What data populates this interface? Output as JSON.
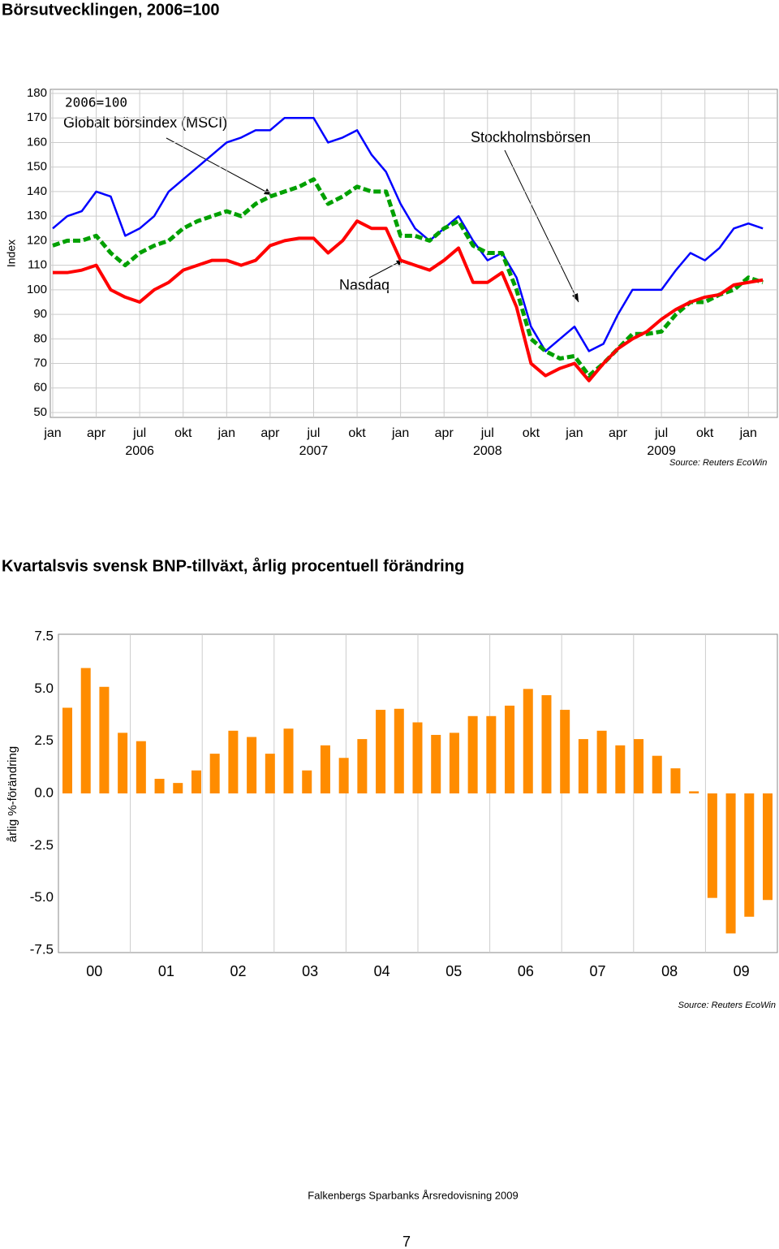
{
  "header": {
    "title": "Börsutvecklingen, 2006=100"
  },
  "chart_data": [
    {
      "type": "line",
      "ylabel": "Index",
      "categories": [
        "jan",
        null,
        null,
        "apr",
        null,
        null,
        "jul",
        null,
        null,
        "okt",
        null,
        null,
        "jan",
        null,
        null,
        "apr",
        null,
        null,
        "jul",
        null,
        null,
        "okt",
        null,
        null,
        "jan",
        null,
        null,
        "apr",
        null,
        null,
        "jul",
        null,
        null,
        "okt",
        null,
        null,
        "jan",
        null,
        null,
        "apr",
        null,
        null,
        "jul",
        null,
        null,
        "okt",
        null,
        null,
        "jan",
        null
      ],
      "year_labels": [
        "2006",
        "2007",
        "2008",
        "2009"
      ],
      "ylim": [
        50,
        180
      ],
      "yticks": [
        50,
        60,
        70,
        80,
        90,
        100,
        110,
        120,
        130,
        140,
        150,
        160,
        170,
        180
      ],
      "grid": true,
      "series": [
        {
          "name": "Globalt börsindex (MSCI)",
          "color": "#0000ff",
          "values": [
            125,
            130,
            132,
            140,
            138,
            122,
            125,
            130,
            140,
            145,
            150,
            155,
            160,
            162,
            165,
            165,
            170,
            170,
            170,
            160,
            162,
            165,
            155,
            148,
            135,
            125,
            120,
            125,
            130,
            120,
            112,
            115,
            105,
            85,
            75,
            80,
            85,
            75,
            78,
            90,
            100,
            100,
            100,
            108,
            115,
            112,
            117,
            125,
            127,
            125
          ]
        },
        {
          "name": "Stockholmsbörsen",
          "color": "#00a000",
          "values": [
            118,
            120,
            120,
            122,
            115,
            110,
            115,
            118,
            120,
            125,
            128,
            130,
            132,
            130,
            135,
            138,
            140,
            142,
            145,
            135,
            138,
            142,
            140,
            140,
            122,
            122,
            120,
            125,
            128,
            118,
            115,
            115,
            100,
            80,
            75,
            72,
            73,
            65,
            70,
            76,
            82,
            82,
            83,
            90,
            95,
            95,
            98,
            100,
            105,
            103
          ]
        },
        {
          "name": "Nasdaq",
          "color": "#ff0000",
          "values": [
            107,
            107,
            108,
            110,
            100,
            97,
            95,
            100,
            103,
            108,
            110,
            112,
            112,
            110,
            112,
            118,
            120,
            121,
            121,
            115,
            120,
            128,
            125,
            125,
            112,
            110,
            108,
            112,
            117,
            103,
            103,
            107,
            93,
            70,
            65,
            68,
            70,
            63,
            70,
            76,
            80,
            83,
            88,
            92,
            95,
            97,
            98,
            102,
            103,
            104
          ]
        }
      ],
      "annotations": [
        "2006=100"
      ],
      "source": "Source: Reuters EcoWin"
    },
    {
      "type": "bar",
      "title": "Kvartalsvis svensk BNP-tillväxt, årlig procentuell förändring",
      "ylabel": "årlig %-förändring",
      "x_labels": [
        "00",
        "01",
        "02",
        "03",
        "04",
        "05",
        "06",
        "07",
        "08",
        "09"
      ],
      "values": [
        4.1,
        6.0,
        5.1,
        2.9,
        2.5,
        0.7,
        0.5,
        1.1,
        1.9,
        3.0,
        2.7,
        1.9,
        3.1,
        1.1,
        2.3,
        1.7,
        2.6,
        4.0,
        4.05,
        3.4,
        2.8,
        2.9,
        3.7,
        3.7,
        4.2,
        5.0,
        4.7,
        4.0,
        2.6,
        3.0,
        2.3,
        2.6,
        1.8,
        1.2,
        0.1,
        -5.0,
        -6.7,
        -5.9,
        -5.1
      ],
      "color": "#ff8c00",
      "ylim": [
        -7.5,
        7.5
      ],
      "yticks": [
        7.5,
        {
          "value": 5,
          "label": "5.0"
        },
        2.5,
        {
          "value": 0,
          "label": "0.0"
        },
        -2.5,
        {
          "value": -5,
          "label": "-5.0"
        },
        -7.5
      ],
      "source": "Source: Reuters EcoWin"
    }
  ],
  "footer": "Falkenbergs Sparbanks Årsredovisning 2009",
  "page_number": "7"
}
